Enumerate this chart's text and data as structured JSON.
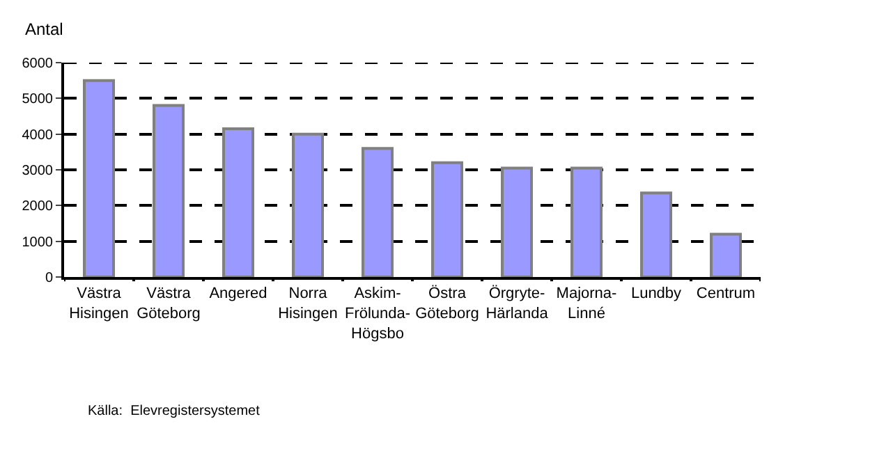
{
  "chart_data": {
    "type": "bar",
    "ylabel": "Antal",
    "categories": [
      "Västra\nHisingen",
      "Västra\nGöteborg",
      "Angered",
      "Norra\nHisingen",
      "Askim-\nFrölunda-\nHögsbo",
      "Östra\nGöteborg",
      "Örgryte-\nHärlanda",
      "Majorna-\nLinné",
      "Lundby",
      "Centrum"
    ],
    "values": [
      5500,
      4800,
      4150,
      4000,
      3600,
      3200,
      3050,
      3050,
      2350,
      1200
    ],
    "color": "#9999ff",
    "ylim": [
      0,
      6000
    ],
    "yticks": [
      0,
      1000,
      2000,
      3000,
      4000,
      5000,
      6000
    ],
    "grid": "y",
    "legend": false,
    "annotations": [
      "Källa:  Elevregistersystemet"
    ]
  }
}
